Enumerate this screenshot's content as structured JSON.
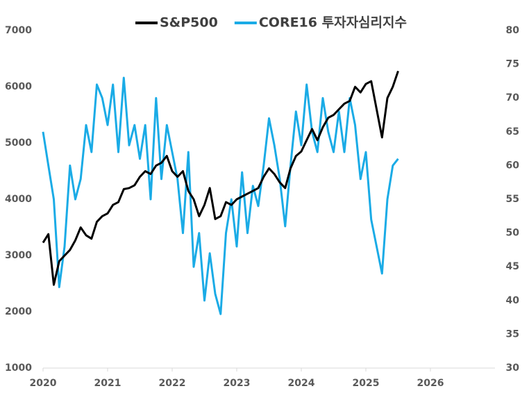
{
  "chart_data": {
    "type": "line",
    "x": [
      2020,
      2020.083,
      2020.167,
      2020.25,
      2020.333,
      2020.417,
      2020.5,
      2020.583,
      2020.667,
      2020.75,
      2020.833,
      2020.917,
      2021,
      2021.083,
      2021.167,
      2021.25,
      2021.333,
      2021.417,
      2021.5,
      2021.583,
      2021.667,
      2021.75,
      2021.833,
      2021.917,
      2022,
      2022.083,
      2022.167,
      2022.25,
      2022.333,
      2022.417,
      2022.5,
      2022.583,
      2022.667,
      2022.75,
      2022.833,
      2022.917,
      2023,
      2023.083,
      2023.167,
      2023.25,
      2023.333,
      2023.417,
      2023.5,
      2023.583,
      2023.667,
      2023.75,
      2023.833,
      2023.917,
      2024,
      2024.083,
      2024.167,
      2024.25,
      2024.333,
      2024.417,
      2024.5,
      2024.583,
      2024.667,
      2024.75,
      2024.833,
      2024.917,
      2025,
      2025.083,
      2025.167,
      2025.25,
      2025.333,
      2025.417,
      2025.5
    ],
    "series": [
      {
        "name": "S&P500",
        "color": "#000000",
        "axis": "y",
        "values": [
          3230,
          3380,
          2480,
          2900,
          3000,
          3100,
          3270,
          3500,
          3360,
          3300,
          3600,
          3700,
          3750,
          3900,
          3950,
          4180,
          4200,
          4250,
          4400,
          4500,
          4450,
          4600,
          4650,
          4770,
          4500,
          4400,
          4500,
          4150,
          4000,
          3700,
          3900,
          4200,
          3650,
          3700,
          3950,
          3900,
          4000,
          4050,
          4100,
          4150,
          4200,
          4400,
          4550,
          4450,
          4300,
          4200,
          4550,
          4770,
          4850,
          5050,
          5250,
          5050,
          5280,
          5450,
          5500,
          5600,
          5700,
          5750,
          6000,
          5900,
          6050,
          6100,
          5600,
          5100,
          5800,
          6000,
          6280
        ]
      },
      {
        "name": "CORE16 투자자심리지수",
        "color": "#1aabe6",
        "axis": "y2",
        "values": [
          65,
          60,
          55,
          42,
          48,
          60,
          55,
          58,
          66,
          62,
          72,
          70,
          66,
          72,
          62,
          73,
          63,
          66,
          61,
          66,
          55,
          70,
          58,
          66,
          62,
          58,
          50,
          62,
          45,
          50,
          40,
          47,
          41,
          38,
          50,
          55,
          48,
          59,
          50,
          57,
          54,
          60,
          67,
          63,
          58,
          51,
          60,
          68,
          63,
          72,
          65,
          62,
          70,
          65,
          62,
          68,
          62,
          70,
          66,
          58,
          62,
          52,
          48,
          44,
          55,
          60,
          61
        ]
      }
    ],
    "xlim": [
      2020,
      2027
    ],
    "xticks": [
      2020,
      2021,
      2022,
      2023,
      2024,
      2025,
      2026
    ],
    "ylim": [
      1000,
      7000
    ],
    "yticks": [
      1000,
      2000,
      3000,
      4000,
      5000,
      6000,
      7000
    ],
    "y2lim": [
      30,
      80
    ],
    "y2ticks": [
      30,
      35,
      40,
      45,
      50,
      55,
      60,
      65,
      70,
      75,
      80
    ],
    "grid": false,
    "legend": "top"
  }
}
